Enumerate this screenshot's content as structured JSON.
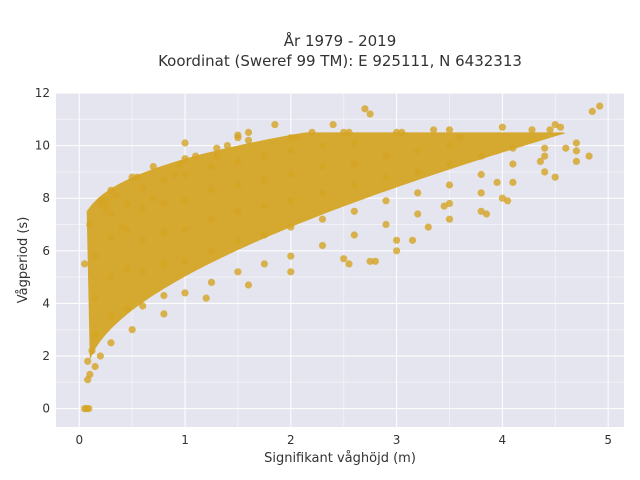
{
  "chart_data": {
    "type": "scatter",
    "title_lines": [
      "År 1979 - 2019",
      "Koordinat (Sweref 99 TM): E 925111, N 6432313"
    ],
    "xlabel": "Signifikant våghöjd (m)",
    "ylabel": "Vågperiod (s)",
    "xlim": [
      -0.22,
      5.15
    ],
    "ylim": [
      -0.7,
      12.0
    ],
    "x_ticks": [
      0,
      1,
      2,
      3,
      4,
      5
    ],
    "y_ticks": [
      0,
      2,
      4,
      6,
      8,
      10,
      12
    ],
    "x_tick_labels": [
      "0",
      "1",
      "2",
      "3",
      "4",
      "5"
    ],
    "y_tick_labels": [
      "0",
      "2",
      "4",
      "6",
      "8",
      "10",
      "12"
    ],
    "grid": true,
    "legend": "none",
    "colors": {
      "marker": "#d4a424",
      "plot_bg": "#e5e5ef",
      "grid": "#ffffff"
    },
    "points": [
      [
        0.05,
        0.0
      ],
      [
        0.07,
        0.0
      ],
      [
        0.09,
        0.0
      ],
      [
        0.08,
        1.1
      ],
      [
        0.1,
        1.3
      ],
      [
        0.15,
        1.6
      ],
      [
        0.2,
        2.0
      ],
      [
        0.3,
        2.5
      ],
      [
        0.5,
        3.0
      ],
      [
        0.8,
        3.6
      ],
      [
        1.2,
        4.2
      ],
      [
        1.6,
        4.7
      ],
      [
        2.0,
        5.2
      ],
      [
        2.5,
        5.7
      ],
      [
        3.0,
        6.4
      ],
      [
        3.5,
        7.2
      ],
      [
        4.0,
        8.0
      ],
      [
        4.5,
        8.8
      ],
      [
        0.05,
        5.5
      ],
      [
        0.1,
        7.0
      ],
      [
        0.2,
        7.9
      ],
      [
        0.3,
        8.3
      ],
      [
        0.5,
        8.8
      ],
      [
        0.7,
        9.2
      ],
      [
        1.0,
        9.5
      ],
      [
        1.3,
        9.9
      ],
      [
        1.6,
        10.2
      ],
      [
        2.0,
        10.3
      ],
      [
        2.5,
        10.5
      ],
      [
        3.0,
        10.5
      ],
      [
        3.5,
        10.6
      ],
      [
        4.0,
        10.7
      ],
      [
        4.5,
        10.8
      ],
      [
        0.15,
        2.8
      ],
      [
        0.15,
        4.2
      ],
      [
        0.15,
        5.8
      ],
      [
        0.3,
        3.5
      ],
      [
        0.3,
        5.0
      ],
      [
        0.3,
        6.5
      ],
      [
        0.3,
        7.4
      ],
      [
        0.45,
        3.8
      ],
      [
        0.45,
        5.3
      ],
      [
        0.45,
        6.8
      ],
      [
        0.45,
        7.8
      ],
      [
        0.6,
        3.9
      ],
      [
        0.6,
        5.2
      ],
      [
        0.6,
        6.4
      ],
      [
        0.6,
        7.6
      ],
      [
        0.6,
        8.4
      ],
      [
        0.8,
        4.3
      ],
      [
        0.8,
        5.5
      ],
      [
        0.8,
        6.7
      ],
      [
        0.8,
        7.8
      ],
      [
        0.8,
        8.7
      ],
      [
        1.0,
        4.4
      ],
      [
        1.0,
        5.6
      ],
      [
        1.0,
        6.8
      ],
      [
        1.0,
        7.9
      ],
      [
        1.0,
        8.9
      ],
      [
        1.25,
        4.8
      ],
      [
        1.25,
        6.0
      ],
      [
        1.25,
        7.2
      ],
      [
        1.25,
        8.3
      ],
      [
        1.25,
        9.2
      ],
      [
        1.5,
        5.2
      ],
      [
        1.5,
        6.4
      ],
      [
        1.5,
        7.5
      ],
      [
        1.5,
        8.5
      ],
      [
        1.5,
        9.4
      ],
      [
        1.75,
        5.5
      ],
      [
        1.75,
        6.6
      ],
      [
        1.75,
        7.7
      ],
      [
        1.75,
        8.7
      ],
      [
        1.75,
        9.6
      ],
      [
        2.0,
        5.8
      ],
      [
        2.0,
        6.9
      ],
      [
        2.0,
        7.9
      ],
      [
        2.0,
        8.9
      ],
      [
        2.0,
        9.8
      ],
      [
        2.3,
        6.2
      ],
      [
        2.3,
        7.2
      ],
      [
        2.3,
        8.2
      ],
      [
        2.3,
        9.2
      ],
      [
        2.3,
        10.0
      ],
      [
        2.6,
        6.6
      ],
      [
        2.6,
        7.5
      ],
      [
        2.6,
        8.5
      ],
      [
        2.6,
        9.3
      ],
      [
        2.6,
        10.1
      ],
      [
        2.9,
        7.0
      ],
      [
        2.9,
        7.9
      ],
      [
        2.9,
        8.8
      ],
      [
        2.9,
        9.6
      ],
      [
        3.2,
        7.4
      ],
      [
        3.2,
        8.2
      ],
      [
        3.2,
        9.0
      ],
      [
        3.2,
        9.8
      ],
      [
        3.5,
        7.8
      ],
      [
        3.5,
        8.5
      ],
      [
        3.5,
        9.3
      ],
      [
        3.5,
        10.0
      ],
      [
        3.8,
        8.2
      ],
      [
        3.8,
        8.9
      ],
      [
        3.8,
        9.6
      ],
      [
        4.1,
        8.6
      ],
      [
        4.1,
        9.3
      ],
      [
        4.1,
        9.9
      ],
      [
        4.4,
        9.0
      ],
      [
        4.4,
        9.6
      ],
      [
        4.7,
        9.4
      ],
      [
        4.7,
        10.1
      ],
      [
        0.08,
        1.8
      ],
      [
        0.12,
        2.2
      ],
      [
        0.25,
        7.6
      ],
      [
        0.35,
        8.1
      ],
      [
        0.4,
        6.9
      ],
      [
        0.55,
        8.8
      ],
      [
        0.7,
        8.0
      ],
      [
        0.9,
        8.9
      ],
      [
        0.95,
        9.3
      ],
      [
        1.1,
        9.6
      ],
      [
        1.3,
        9.6
      ],
      [
        1.4,
        10.0
      ],
      [
        1.5,
        10.3
      ],
      [
        2.55,
        5.5
      ],
      [
        2.75,
        5.6
      ],
      [
        2.8,
        5.6
      ],
      [
        3.0,
        6.0
      ],
      [
        3.15,
        6.4
      ],
      [
        3.3,
        6.9
      ],
      [
        3.8,
        7.5
      ],
      [
        3.85,
        7.4
      ],
      [
        1.0,
        10.1
      ],
      [
        1.5,
        10.4
      ],
      [
        1.6,
        10.5
      ],
      [
        1.85,
        10.8
      ],
      [
        2.05,
        10.3
      ],
      [
        2.2,
        10.5
      ],
      [
        2.4,
        10.8
      ],
      [
        2.55,
        10.5
      ],
      [
        2.7,
        11.4
      ],
      [
        2.75,
        11.2
      ],
      [
        3.05,
        10.5
      ],
      [
        3.35,
        10.6
      ],
      [
        3.6,
        10.3
      ],
      [
        0.2,
        7.8
      ],
      [
        0.25,
        7.9
      ],
      [
        3.45,
        7.7
      ],
      [
        3.95,
        8.6
      ],
      [
        4.05,
        7.9
      ],
      [
        4.28,
        10.6
      ],
      [
        4.36,
        9.4
      ],
      [
        4.45,
        10.6
      ],
      [
        4.6,
        9.9
      ],
      [
        4.7,
        9.8
      ],
      [
        4.82,
        9.6
      ],
      [
        4.85,
        11.3
      ],
      [
        4.92,
        11.5
      ],
      [
        4.55,
        10.7
      ],
      [
        4.4,
        9.9
      ]
    ]
  }
}
